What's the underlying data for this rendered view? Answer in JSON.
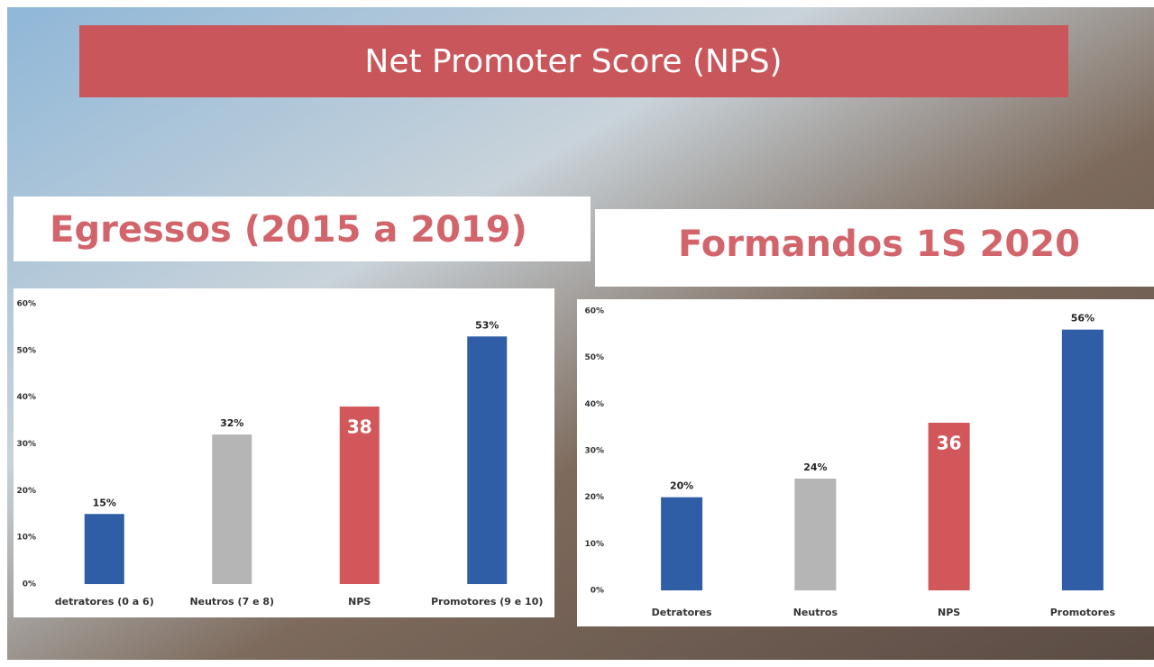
{
  "title": "Net Promoter Score (NPS)",
  "chart_data": [
    {
      "type": "bar",
      "title": "Egressos (2015 a 2019)",
      "categories": [
        "detratores (0 a 6)",
        "Neutros (7 e 8)",
        "NPS",
        "Promotores (9 e 10)"
      ],
      "values": [
        15,
        32,
        38,
        53
      ],
      "value_labels": [
        "15%",
        "32%",
        "38",
        "53%"
      ],
      "colors": [
        "#2f5ea6",
        "#b5b5b5",
        "#d2575b",
        "#2f5ea6"
      ],
      "ylim": [
        0,
        60
      ],
      "yticks": [
        {
          "value": 0,
          "label": "0%"
        },
        {
          "value": 10,
          "label": "10%"
        },
        {
          "value": 20,
          "label": "20%"
        },
        {
          "value": 30,
          "label": "30%"
        },
        {
          "value": 40,
          "label": "40%"
        },
        {
          "value": 50,
          "label": "50%"
        },
        {
          "value": 60,
          "label": "60%"
        }
      ],
      "grid": false
    },
    {
      "type": "bar",
      "title": "Formandos 1S 2020",
      "categories": [
        "Detratores",
        "Neutros",
        "NPS",
        "Promotores"
      ],
      "values": [
        20,
        24,
        36,
        56
      ],
      "value_labels": [
        "20%",
        "24%",
        "36",
        "56%"
      ],
      "colors": [
        "#2f5ea6",
        "#b5b5b5",
        "#d2575b",
        "#2f5ea6"
      ],
      "ylim": [
        0,
        60
      ],
      "yticks": [
        {
          "value": 0,
          "label": "0%"
        },
        {
          "value": 10,
          "label": "10%"
        },
        {
          "value": 20,
          "label": "20%"
        },
        {
          "value": 30,
          "label": "30%"
        },
        {
          "value": 40,
          "label": "40%"
        },
        {
          "value": 50,
          "label": "50%"
        },
        {
          "value": 60,
          "label": "60%"
        }
      ],
      "grid": false
    }
  ]
}
